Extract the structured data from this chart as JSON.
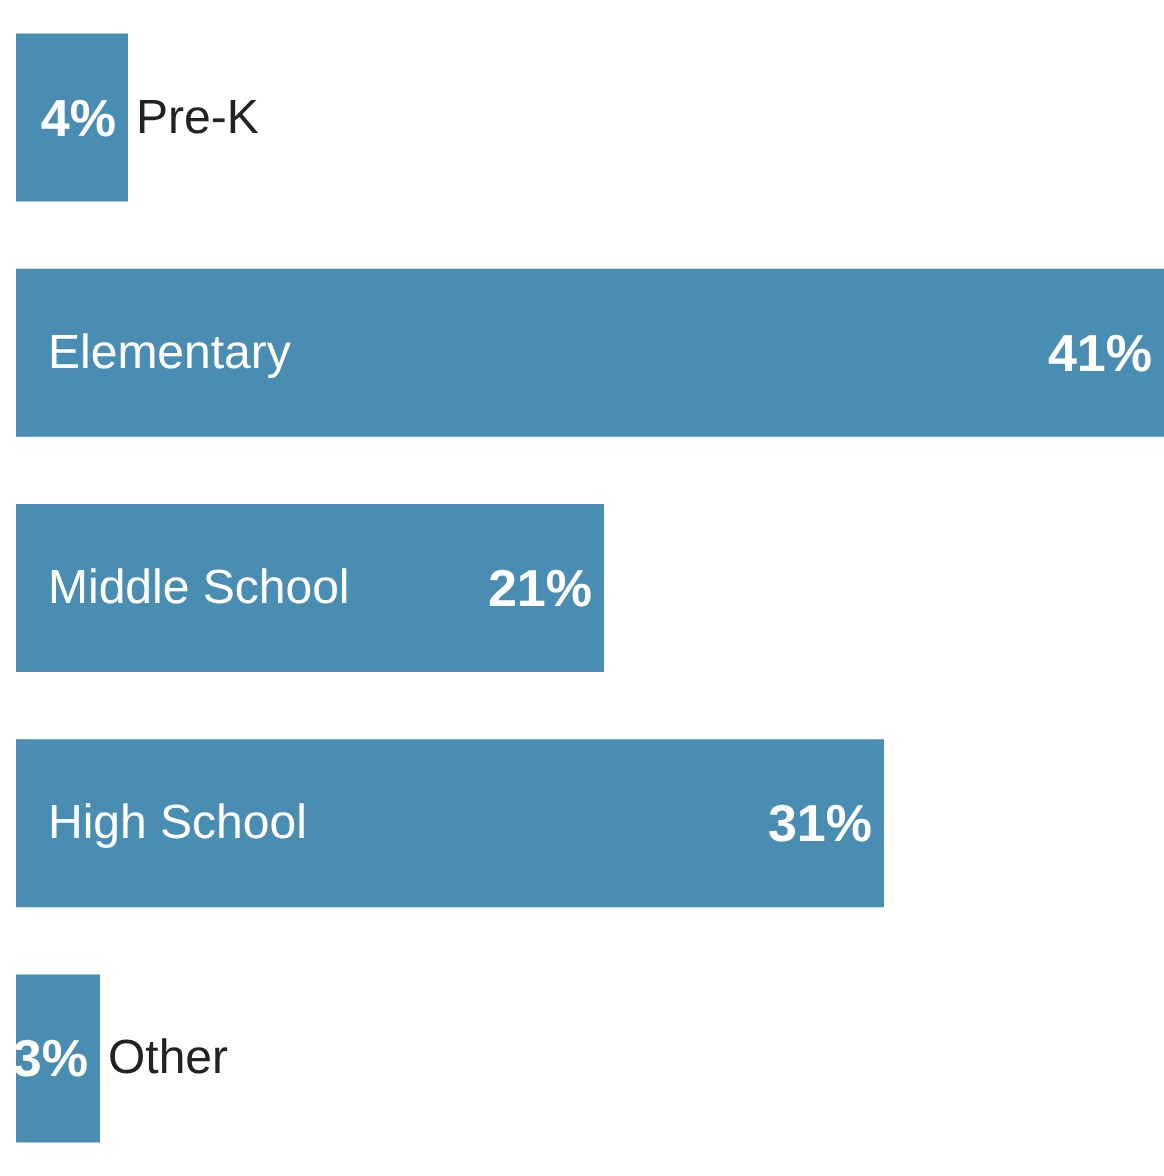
{
  "chart_data": {
    "type": "bar",
    "orientation": "horizontal",
    "categories": [
      "Pre-K",
      "Elementary",
      "Middle School",
      "High School",
      "Other"
    ],
    "values": [
      4,
      41,
      21,
      31,
      3
    ],
    "value_labels": [
      "4%",
      "41%",
      "21%",
      "31%",
      "3%"
    ],
    "color": "#4a8db3",
    "xlim": [
      0,
      41
    ]
  }
}
